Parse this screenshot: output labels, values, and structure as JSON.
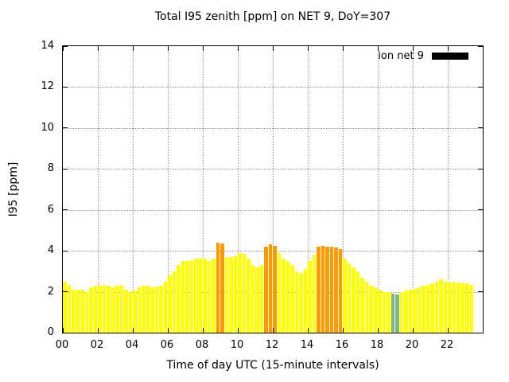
{
  "chart_data": {
    "type": "bar",
    "title": "Total I95 zenith [ppm] on NET 9, DoY=307",
    "xlabel": "Time of day UTC (15-minute intervals)",
    "ylabel": "I95 [ppm]",
    "legend_label": "ion net 9",
    "legend_swatch_color": "#000000",
    "legend_position": "top-right",
    "grid": true,
    "ylim": [
      0,
      14
    ],
    "xlim_hours": [
      0,
      24
    ],
    "yticks": [
      0,
      2,
      4,
      6,
      8,
      10,
      12,
      14
    ],
    "xtick_hours": [
      0,
      2,
      4,
      6,
      8,
      10,
      12,
      14,
      16,
      18,
      20,
      22
    ],
    "xtick_labels": [
      "00",
      "02",
      "04",
      "06",
      "08",
      "10",
      "12",
      "14",
      "16",
      "18",
      "20",
      "22"
    ],
    "interval_minutes": 15,
    "colors": {
      "y": "#ffff00",
      "o": "#ff9900",
      "g": "#7cb87c"
    },
    "times": [
      "00:00",
      "00:15",
      "00:30",
      "00:45",
      "01:00",
      "01:15",
      "01:30",
      "01:45",
      "02:00",
      "02:15",
      "02:30",
      "02:45",
      "03:00",
      "03:15",
      "03:30",
      "03:45",
      "04:00",
      "04:15",
      "04:30",
      "04:45",
      "05:00",
      "05:15",
      "05:30",
      "05:45",
      "06:00",
      "06:15",
      "06:30",
      "06:45",
      "07:00",
      "07:15",
      "07:30",
      "07:45",
      "08:00",
      "08:15",
      "08:30",
      "08:45",
      "09:00",
      "09:15",
      "09:30",
      "09:45",
      "10:00",
      "10:15",
      "10:30",
      "10:45",
      "11:00",
      "11:15",
      "11:30",
      "11:45",
      "12:00",
      "12:15",
      "12:30",
      "12:45",
      "13:00",
      "13:15",
      "13:30",
      "13:45",
      "14:00",
      "14:15",
      "14:30",
      "14:45",
      "15:00",
      "15:15",
      "15:30",
      "15:45",
      "16:00",
      "16:15",
      "16:30",
      "16:45",
      "17:00",
      "17:15",
      "17:30",
      "17:45",
      "18:00",
      "18:15",
      "18:30",
      "18:45",
      "19:00",
      "19:15",
      "19:30",
      "19:45",
      "20:00",
      "20:15",
      "20:30",
      "20:45",
      "21:00",
      "21:15",
      "21:30",
      "21:45",
      "22:00",
      "22:15",
      "22:30",
      "22:45",
      "23:00",
      "23:15"
    ],
    "values": [
      2.5,
      2.35,
      2.1,
      2.1,
      2.1,
      2.0,
      2.2,
      2.3,
      2.3,
      2.35,
      2.3,
      2.2,
      2.3,
      2.35,
      2.1,
      2.0,
      2.05,
      2.2,
      2.3,
      2.3,
      2.2,
      2.25,
      2.3,
      2.5,
      2.8,
      3.0,
      3.3,
      3.5,
      3.5,
      3.55,
      3.6,
      3.6,
      3.6,
      3.5,
      3.6,
      4.4,
      4.35,
      3.7,
      3.7,
      3.75,
      3.9,
      3.85,
      3.6,
      3.3,
      3.2,
      3.3,
      4.2,
      4.3,
      4.25,
      3.9,
      3.6,
      3.5,
      3.3,
      3.0,
      2.9,
      3.1,
      3.5,
      3.8,
      4.2,
      4.25,
      4.2,
      4.2,
      4.15,
      4.1,
      3.6,
      3.4,
      3.2,
      3.0,
      2.7,
      2.5,
      2.3,
      2.2,
      2.1,
      2.0,
      2.0,
      1.9,
      1.85,
      2.0,
      2.05,
      2.1,
      2.15,
      2.2,
      2.3,
      2.35,
      2.4,
      2.5,
      2.6,
      2.5,
      2.45,
      2.5,
      2.45,
      2.4,
      2.4,
      2.35
    ],
    "color_keys": [
      "y",
      "y",
      "y",
      "y",
      "y",
      "y",
      "y",
      "y",
      "y",
      "y",
      "y",
      "y",
      "y",
      "y",
      "y",
      "y",
      "y",
      "y",
      "y",
      "y",
      "y",
      "y",
      "y",
      "y",
      "y",
      "y",
      "y",
      "y",
      "y",
      "y",
      "y",
      "y",
      "y",
      "y",
      "y",
      "o",
      "o",
      "y",
      "y",
      "y",
      "y",
      "y",
      "y",
      "y",
      "y",
      "y",
      "o",
      "o",
      "o",
      "y",
      "y",
      "y",
      "y",
      "y",
      "y",
      "y",
      "y",
      "y",
      "o",
      "o",
      "o",
      "o",
      "o",
      "o",
      "y",
      "y",
      "y",
      "y",
      "y",
      "y",
      "y",
      "y",
      "y",
      "y",
      "y",
      "g",
      "g",
      "y",
      "y",
      "y",
      "y",
      "y",
      "y",
      "y",
      "y",
      "y",
      "y",
      "y",
      "y",
      "y",
      "y",
      "y",
      "y",
      "y"
    ]
  }
}
